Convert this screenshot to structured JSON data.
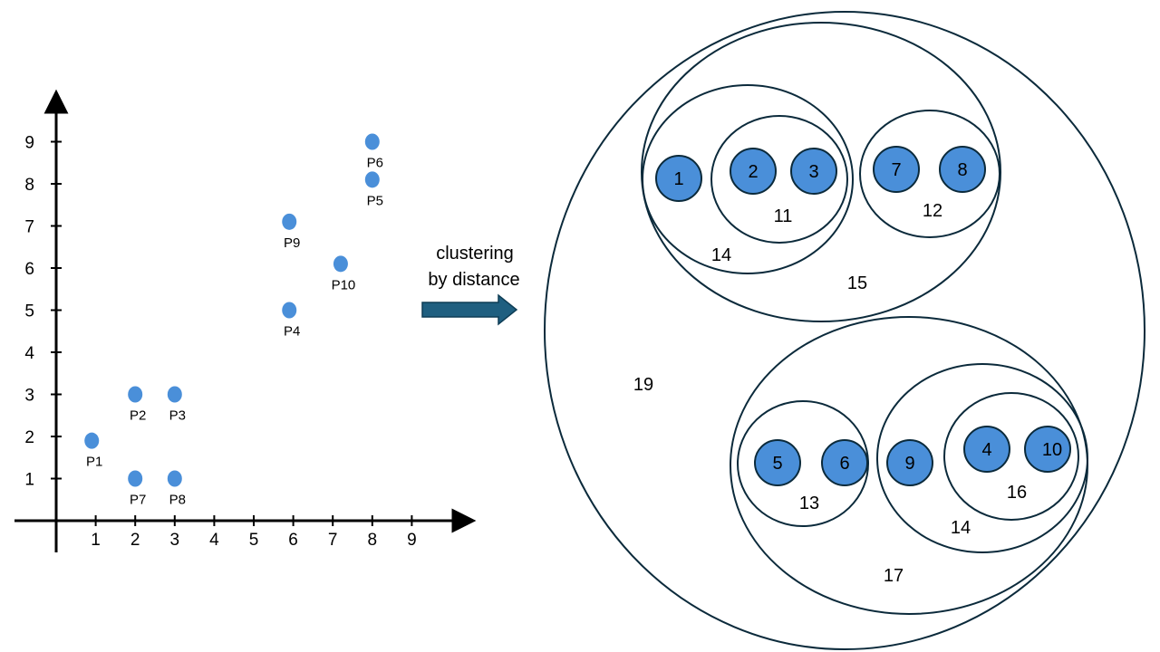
{
  "colors": {
    "point_fill": "#4a8fd9",
    "node_fill": "#4a8fd9",
    "node_stroke": "#0b2a3b",
    "cluster_stroke": "#0b2a3b",
    "axis": "#000000",
    "arrow_fill": "#1f5f80",
    "arrow_stroke": "#0e3d55"
  },
  "scatter": {
    "x_ticks": [
      "1",
      "2",
      "3",
      "4",
      "5",
      "6",
      "7",
      "8",
      "9"
    ],
    "y_ticks": [
      "1",
      "2",
      "3",
      "4",
      "5",
      "6",
      "7",
      "8",
      "9"
    ],
    "points": [
      {
        "label": "P1",
        "x": 0.9,
        "y": 1.9
      },
      {
        "label": "P2",
        "x": 2.0,
        "y": 3.0
      },
      {
        "label": "P3",
        "x": 3.0,
        "y": 3.0
      },
      {
        "label": "P4",
        "x": 5.9,
        "y": 5.0
      },
      {
        "label": "P5",
        "x": 8.0,
        "y": 8.1
      },
      {
        "label": "P6",
        "x": 8.0,
        "y": 9.0
      },
      {
        "label": "P7",
        "x": 2.0,
        "y": 1.0
      },
      {
        "label": "P8",
        "x": 3.0,
        "y": 1.0
      },
      {
        "label": "P9",
        "x": 5.9,
        "y": 7.1
      },
      {
        "label": "P10",
        "x": 7.2,
        "y": 6.1
      }
    ]
  },
  "arrow": {
    "caption_line1": "clustering",
    "caption_line2": "by distance"
  },
  "dendrogram": {
    "nodes": [
      "1",
      "2",
      "3",
      "7",
      "8",
      "5",
      "6",
      "9",
      "4",
      "10"
    ],
    "cluster_labels": [
      "11",
      "12",
      "14",
      "15",
      "13",
      "16",
      "14",
      "17",
      "19"
    ]
  }
}
